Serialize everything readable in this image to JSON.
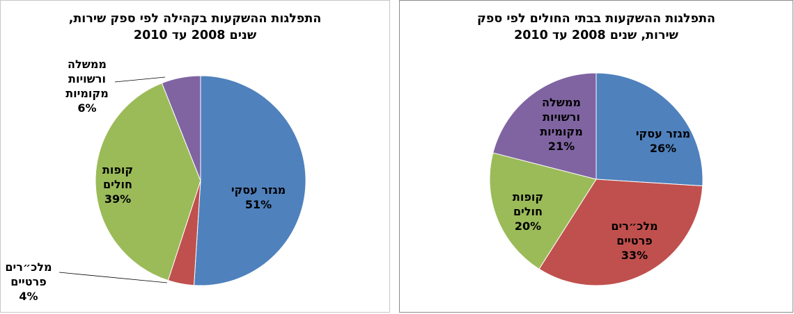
{
  "chart_data": [
    {
      "type": "pie",
      "title": "התפלגות ההשקעות בקהילה לפי ספק שירות, שנים 2008 עד 2010",
      "title_lines": [
        "התפלגות ההשקעות בקהילה לפי ספק שירות,",
        "שנים 2008 עד 2010"
      ],
      "slices": [
        {
          "name": "מגזר עסקי",
          "label_lines": [
            "מגזר עסקי"
          ],
          "value": 51,
          "percent_label": "51%",
          "color": "#4F81BD"
        },
        {
          "name": "מלכ\"רים פרטיים",
          "label_lines": [
            "מלכ״רים",
            "פרטיים"
          ],
          "value": 4,
          "percent_label": "4%",
          "color": "#C0504D"
        },
        {
          "name": "קופות חולים",
          "label_lines": [
            "קופות",
            "חולים"
          ],
          "value": 39,
          "percent_label": "39%",
          "color": "#9BBB59"
        },
        {
          "name": "ממשלה ורשויות מקומיות",
          "label_lines": [
            "ממשלה",
            "ורשויות",
            "מקומיות"
          ],
          "value": 6,
          "percent_label": "6%",
          "color": "#8064A2"
        }
      ]
    },
    {
      "type": "pie",
      "title": "התפלגות ההשקעות בבתי החולים לפי ספק שירות, שנים 2008 עד 2010",
      "title_lines": [
        "התפלגות ההשקעות בבתי החולים לפי ספק",
        "שירות, שנים 2008 עד 2010"
      ],
      "slices": [
        {
          "name": "מגזר עסקי",
          "label_lines": [
            "מגזר עסקי"
          ],
          "value": 26,
          "percent_label": "26%",
          "color": "#4F81BD"
        },
        {
          "name": "מלכ\"רים פרטיים",
          "label_lines": [
            "מלכ״רים",
            "פרטיים"
          ],
          "value": 33,
          "percent_label": "33%",
          "color": "#C0504D"
        },
        {
          "name": "קופות חולים",
          "label_lines": [
            "קופות",
            "חולים"
          ],
          "value": 20,
          "percent_label": "20%",
          "color": "#9BBB59"
        },
        {
          "name": "ממשלה ורשויות מקומיות",
          "label_lines": [
            "ממשלה",
            "ורשויות",
            "מקומיות"
          ],
          "value": 21,
          "percent_label": "21%",
          "color": "#8064A2"
        }
      ]
    }
  ]
}
